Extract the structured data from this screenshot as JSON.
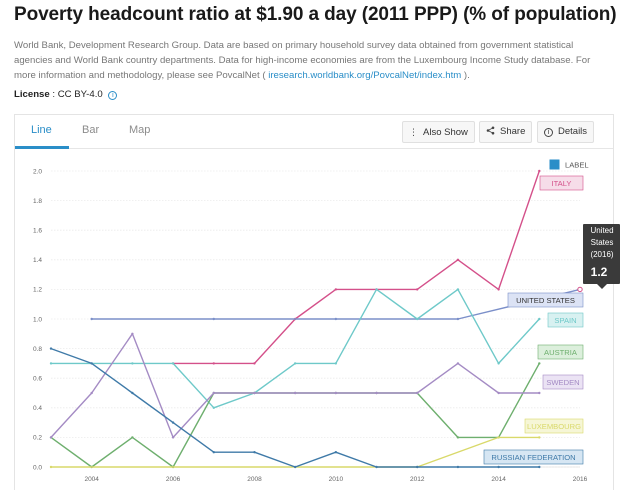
{
  "page": {
    "title": "Poverty headcount ratio at $1.90 a day (2011 PPP) (% of population)",
    "source_before": "World Bank, Development Research Group. Data are based on primary household survey data obtained from government statistical agencies and World Bank country departments. Data for high-income economies are from the Luxembourg Income Study database. For more information and methodology, please see PovcalNet (",
    "source_link": " iresearch.worldbank.org/PovcalNet/index.htm ",
    "source_after": ").",
    "license_label": "License",
    "license_value": " : CC BY-4.0 "
  },
  "tabs": [
    "Line",
    "Bar",
    "Map"
  ],
  "active_tab": "Line",
  "toolbar": {
    "also_show": "Also Show",
    "share": "Share",
    "details": "Details"
  },
  "legend_label": "LABEL",
  "tooltip": {
    "country": "United States",
    "year": "(2016)",
    "value": "1.2"
  },
  "chart_data": {
    "type": "line",
    "x": [
      2003,
      2004,
      2005,
      2006,
      2007,
      2008,
      2009,
      2010,
      2011,
      2012,
      2013,
      2014,
      2015,
      2016
    ],
    "xticks": [
      "2004",
      "2006",
      "2008",
      "2010",
      "2012",
      "2014",
      "2016"
    ],
    "xtick_values": [
      2004,
      2006,
      2008,
      2010,
      2012,
      2014,
      2016
    ],
    "xlim": [
      2003,
      2016
    ],
    "ylim": [
      0,
      2.0
    ],
    "yticks": [
      "0.0",
      "0.2",
      "0.4",
      "0.6",
      "0.8",
      "1.0",
      "1.2",
      "1.4",
      "1.6",
      "1.8",
      "2.0"
    ],
    "grid": true,
    "series": [
      {
        "name": "ITALY",
        "color": "#d4508a",
        "label_bg": "#f6dde9",
        "points": [
          [
            2006,
            0.7
          ],
          [
            2007,
            0.7
          ],
          [
            2008,
            0.7
          ],
          [
            2009,
            1.0
          ],
          [
            2010,
            1.2
          ],
          [
            2011,
            1.2
          ],
          [
            2012,
            1.2
          ],
          [
            2013,
            1.4
          ],
          [
            2014,
            1.2
          ],
          [
            2015,
            2.0
          ]
        ]
      },
      {
        "name": "UNITED STATES",
        "color": "#7b8fc9",
        "label_bg": "#dce3f5",
        "points": [
          [
            2004,
            1.0
          ],
          [
            2007,
            1.0
          ],
          [
            2010,
            1.0
          ],
          [
            2013,
            1.0
          ],
          [
            2016,
            1.2
          ]
        ]
      },
      {
        "name": "SPAIN",
        "color": "#6ec9c9",
        "label_bg": "#d8f1f1",
        "points": [
          [
            2003,
            0.7
          ],
          [
            2004,
            0.7
          ],
          [
            2005,
            0.7
          ],
          [
            2006,
            0.7
          ],
          [
            2007,
            0.4
          ],
          [
            2008,
            0.5
          ],
          [
            2009,
            0.7
          ],
          [
            2010,
            0.7
          ],
          [
            2011,
            1.2
          ],
          [
            2012,
            1.0
          ],
          [
            2013,
            1.2
          ],
          [
            2014,
            0.7
          ],
          [
            2015,
            1.0
          ]
        ]
      },
      {
        "name": "AUSTRIA",
        "color": "#6eaf6e",
        "label_bg": "#dcefdc",
        "points": [
          [
            2003,
            0.2
          ],
          [
            2004,
            0.0
          ],
          [
            2005,
            0.2
          ],
          [
            2006,
            0.0
          ],
          [
            2007,
            0.5
          ],
          [
            2008,
            0.5
          ],
          [
            2009,
            0.5
          ],
          [
            2010,
            0.5
          ],
          [
            2011,
            0.5
          ],
          [
            2012,
            0.5
          ],
          [
            2013,
            0.2
          ],
          [
            2014,
            0.2
          ],
          [
            2015,
            0.7
          ]
        ]
      },
      {
        "name": "SWEDEN",
        "color": "#a48bc4",
        "label_bg": "#ebe3f4",
        "points": [
          [
            2003,
            0.2
          ],
          [
            2004,
            0.5
          ],
          [
            2005,
            0.9
          ],
          [
            2006,
            0.2
          ],
          [
            2007,
            0.5
          ],
          [
            2008,
            0.5
          ],
          [
            2009,
            0.5
          ],
          [
            2010,
            0.5
          ],
          [
            2011,
            0.5
          ],
          [
            2012,
            0.5
          ],
          [
            2013,
            0.7
          ],
          [
            2014,
            0.5
          ],
          [
            2015,
            0.5
          ]
        ]
      },
      {
        "name": "LUXEMBOURG",
        "color": "#d9d96a",
        "label_bg": "#f6f6d6",
        "points": [
          [
            2003,
            0.0
          ],
          [
            2012,
            0.0
          ],
          [
            2014,
            0.2
          ],
          [
            2015,
            0.2
          ]
        ]
      },
      {
        "name": "RUSSIAN FEDERATION",
        "color": "#3f7aa8",
        "label_bg": "#d6e6f3",
        "points": [
          [
            2003,
            0.8
          ],
          [
            2004,
            0.7
          ],
          [
            2005,
            0.5
          ],
          [
            2006,
            0.3
          ],
          [
            2007,
            0.1
          ],
          [
            2008,
            0.1
          ],
          [
            2009,
            0.0
          ],
          [
            2010,
            0.1
          ],
          [
            2011,
            0.0
          ],
          [
            2012,
            0.0
          ],
          [
            2013,
            0.0
          ],
          [
            2014,
            0.0
          ],
          [
            2015,
            0.0
          ]
        ]
      }
    ]
  }
}
